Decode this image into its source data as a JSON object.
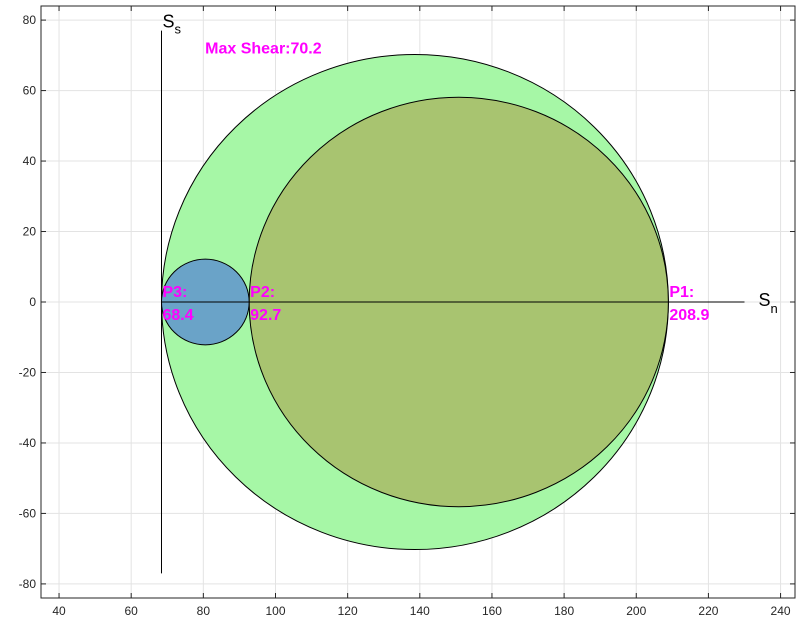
{
  "chart_data": {
    "type": "scatter",
    "title": "",
    "xlabel": "",
    "ylabel": "",
    "xlim": [
      35,
      244
    ],
    "ylim": [
      -84,
      84
    ],
    "grid": true,
    "x_ticks": [
      40,
      60,
      80,
      100,
      120,
      140,
      160,
      180,
      200,
      220,
      240
    ],
    "y_ticks": [
      -80,
      -60,
      -40,
      -20,
      0,
      20,
      40,
      60,
      80
    ],
    "circles": [
      {
        "center": 138.65,
        "radius": 70.25,
        "fill": "#a6f7a6"
      },
      {
        "center": 150.8,
        "radius": 58.1,
        "fill": "#a8c470"
      },
      {
        "center": 80.55,
        "radius": 12.15,
        "fill": "#6aa3c8"
      }
    ],
    "normal_axis": {
      "x_start": 68.4,
      "x_end": 230,
      "y": 0,
      "label": "S",
      "sub": "n"
    },
    "shear_axis": {
      "x": 68.4,
      "y_start": -77,
      "y_end": 77,
      "label": "S",
      "sub": "s"
    },
    "principal_labels": [
      {
        "name": "P3:",
        "value": "68.4",
        "x": 68.4
      },
      {
        "name": "P2:",
        "value": "92.7",
        "x": 92.7
      },
      {
        "name": "P1:",
        "value": "208.9",
        "x": 208.9
      }
    ],
    "max_shear": {
      "text": "Max Shear:70.2",
      "x": 80.5,
      "y": 70.2
    },
    "colors": {
      "annotation": "#ff00ff",
      "grid": "#e3e3e3",
      "frame": "#262626"
    }
  }
}
